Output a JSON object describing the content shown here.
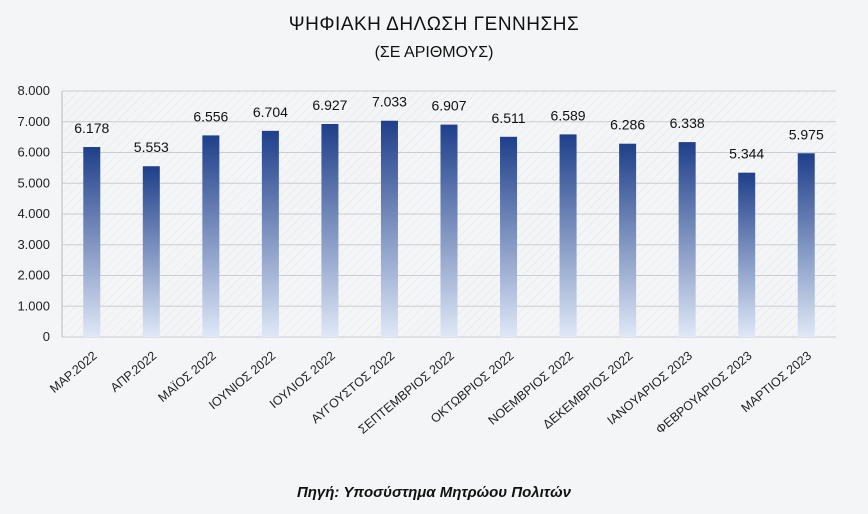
{
  "chart_data": {
    "type": "bar",
    "title": "ΨΗΦΙΑΚΗ ΔΗΛΩΣΗ  ΓΕΝΝΗΣΗΣ",
    "subtitle": "(ΣΕ ΑΡΙΘΜΟΥΣ)",
    "source": "Πηγή: Υποσύστημα Μητρώου Πολιτών",
    "categories": [
      "ΜΑΡ.2022",
      "ΑΠΡ.2022",
      "ΜΑΪΟΣ 2022",
      "ΙΟΥΝΙΟΣ 2022",
      "ΙΟΥΛΙΟΣ 2022",
      "ΑΥΓΟΥΣΤΟΣ 2022",
      "ΣΕΠΤΕΜΒΡΙΟΣ 2022",
      "ΟΚΤΩΒΡΙΟΣ 2022",
      "ΝΟΕΜΒΡΙΟΣ 2022",
      "ΔΕΚΕΜΒΡΙΟΣ 2022",
      "ΙΑΝΟΥΑΡΙΟΣ 2023",
      "ΦΕΒΡΟΥΑΡΙΟΣ 2023",
      "ΜΑΡΤΙΟΣ 2023"
    ],
    "values": [
      6178,
      5553,
      6556,
      6704,
      6927,
      7033,
      6907,
      6511,
      6589,
      6286,
      6338,
      5344,
      5975
    ],
    "value_labels": [
      "6.178",
      "5.553",
      "6.556",
      "6.704",
      "6.927",
      "7.033",
      "6.907",
      "6.511",
      "6.589",
      "6.286",
      "6.338",
      "5.344",
      "5.975"
    ],
    "yticks": [
      0,
      1000,
      2000,
      3000,
      4000,
      5000,
      6000,
      7000,
      8000
    ],
    "ytick_labels": [
      "0",
      "1.000",
      "2.000",
      "3.000",
      "4.000",
      "5.000",
      "6.000",
      "7.000",
      "8.000"
    ],
    "ylim": [
      0,
      8000
    ],
    "xlabel": "",
    "ylabel": "",
    "grid": true,
    "legend": false,
    "colors": {
      "bar_top": "#1f3f8a",
      "bar_bottom": "#dfe8f7",
      "grid": "#c9ccd1"
    }
  }
}
